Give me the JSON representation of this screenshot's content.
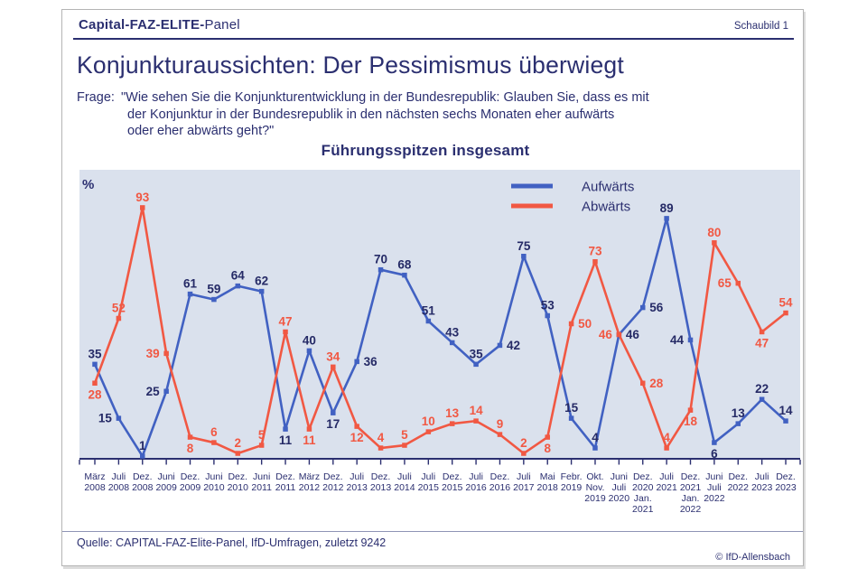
{
  "header": {
    "brand_bold": "Capital-FAZ-ELITE-",
    "brand_regular": "Panel",
    "schaubild": "Schaubild  1"
  },
  "title": "Konjunkturaussichten: Der Pessimismus überwiegt",
  "question": {
    "prefix": "Frage:",
    "line1": "\"Wie sehen Sie die Konjunkturentwicklung in der Bundesrepublik: Glauben Sie, dass es mit",
    "line2": "der Konjunktur in der Bundesrepublik in den nächsten sechs Monaten eher aufwärts",
    "line3": "oder eher abwärts geht?\""
  },
  "footer": {
    "source": "Quelle: CAPITAL-FAZ-Elite-Panel, IfD-Umfragen, zuletzt 9242",
    "copyright": "© IfD-Allensbach"
  },
  "chart_data": {
    "type": "line",
    "title": "Führungsspitzen insgesamt",
    "percent_symbol": "%",
    "ylim": [
      0,
      100
    ],
    "grid": false,
    "legend_position": "top-right",
    "plot_bg": "#dae1ed",
    "axis_color": "#2b2f70",
    "categories": [
      [
        "März",
        "2008"
      ],
      [
        "Juli",
        "2008"
      ],
      [
        "Dez.",
        "2008"
      ],
      [
        "Juni",
        "2009"
      ],
      [
        "Dez.",
        "2009"
      ],
      [
        "Juni",
        "2010"
      ],
      [
        "Dez.",
        "2010"
      ],
      [
        "Juni",
        "2011"
      ],
      [
        "Dez.",
        "2011"
      ],
      [
        "März",
        "2012"
      ],
      [
        "Dez.",
        "2012"
      ],
      [
        "Juli",
        "2013"
      ],
      [
        "Dez.",
        "2013"
      ],
      [
        "Juli",
        "2014"
      ],
      [
        "Juli",
        "2015"
      ],
      [
        "Dez.",
        "2015"
      ],
      [
        "Juli",
        "2016"
      ],
      [
        "Dez.",
        "2016"
      ],
      [
        "Juli",
        "2017"
      ],
      [
        "Mai",
        "2018"
      ],
      [
        "Febr.",
        "2019"
      ],
      [
        "Okt.",
        "Nov.",
        "2019"
      ],
      [
        "Juni",
        "Juli",
        "2020"
      ],
      [
        "Dez.",
        "2020",
        "Jan.",
        "2021"
      ],
      [
        "Juli",
        "2021"
      ],
      [
        "Dez.",
        "2021",
        "Jan.",
        "2022"
      ],
      [
        "Juni",
        "Juli",
        "2022"
      ],
      [
        "Dez.",
        "2022"
      ],
      [
        "Juli",
        "2023"
      ],
      [
        "Dez.",
        "2023"
      ]
    ],
    "series": [
      {
        "name": "Aufwärts",
        "color": "#4161c2",
        "label_color": "#252a66",
        "values": [
          35,
          15,
          1,
          25,
          61,
          59,
          64,
          62,
          11,
          40,
          17,
          36,
          70,
          68,
          51,
          43,
          35,
          42,
          75,
          53,
          15,
          4,
          46,
          56,
          89,
          44,
          6,
          13,
          22,
          14
        ],
        "label_pos": [
          "above",
          "left",
          "above",
          "left",
          "above",
          "above",
          "above",
          "above",
          "below",
          "above",
          "below",
          "right",
          "above",
          "above",
          "above",
          "above",
          "above",
          "right",
          "above",
          "above",
          "above",
          "above",
          "right",
          "right",
          "above",
          "left",
          "below",
          "above",
          "above",
          "above"
        ]
      },
      {
        "name": "Abwärts",
        "color": "#f15843",
        "label_color": "#f15843",
        "values": [
          28,
          52,
          93,
          39,
          8,
          6,
          2,
          5,
          47,
          11,
          34,
          12,
          4,
          5,
          10,
          13,
          14,
          9,
          2,
          8,
          50,
          73,
          46,
          28,
          4,
          18,
          80,
          65,
          47,
          54
        ],
        "label_pos": [
          "below",
          "above",
          "above",
          "left",
          "below",
          "above",
          "above",
          "above",
          "above",
          "below",
          "above",
          "below",
          "above",
          "above",
          "above",
          "above",
          "above",
          "above",
          "above",
          "below",
          "right",
          "above",
          "left",
          "right",
          "above",
          "below",
          "above",
          "left",
          "below",
          "above"
        ]
      }
    ]
  }
}
